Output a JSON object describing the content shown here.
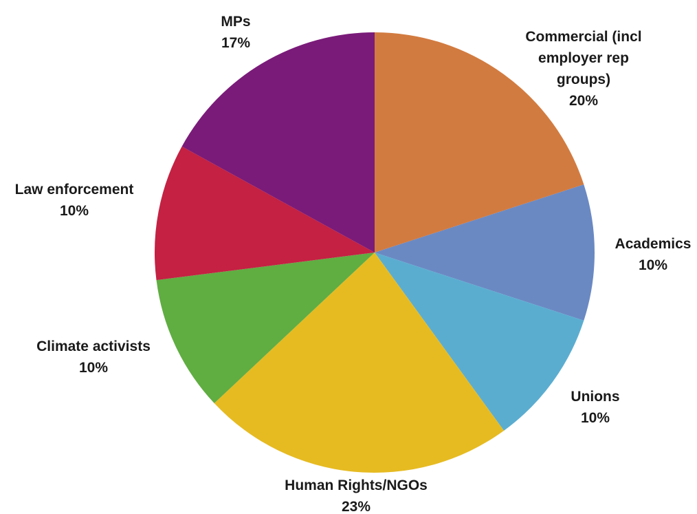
{
  "chart_data": {
    "type": "pie",
    "title": "",
    "slices": [
      {
        "label": [
          "Commercial (incl",
          "employer rep",
          "groups)"
        ],
        "pct_label": "20%",
        "value": 20,
        "color": "#D27B40"
      },
      {
        "label": [
          "Academics"
        ],
        "pct_label": "10%",
        "value": 10,
        "color": "#6A89C3"
      },
      {
        "label": [
          "Unions"
        ],
        "pct_label": "10%",
        "value": 10,
        "color": "#5BADD0"
      },
      {
        "label": [
          "Human Rights/NGOs"
        ],
        "pct_label": "23%",
        "value": 23,
        "color": "#E6BB22"
      },
      {
        "label": [
          "Climate activists"
        ],
        "pct_label": "10%",
        "value": 10,
        "color": "#60AD42"
      },
      {
        "label": [
          "Law enforcement"
        ],
        "pct_label": "10%",
        "value": 10,
        "color": "#C42143"
      },
      {
        "label": [
          "MPs"
        ],
        "pct_label": "17%",
        "value": 17,
        "color": "#7A1B79"
      }
    ]
  }
}
